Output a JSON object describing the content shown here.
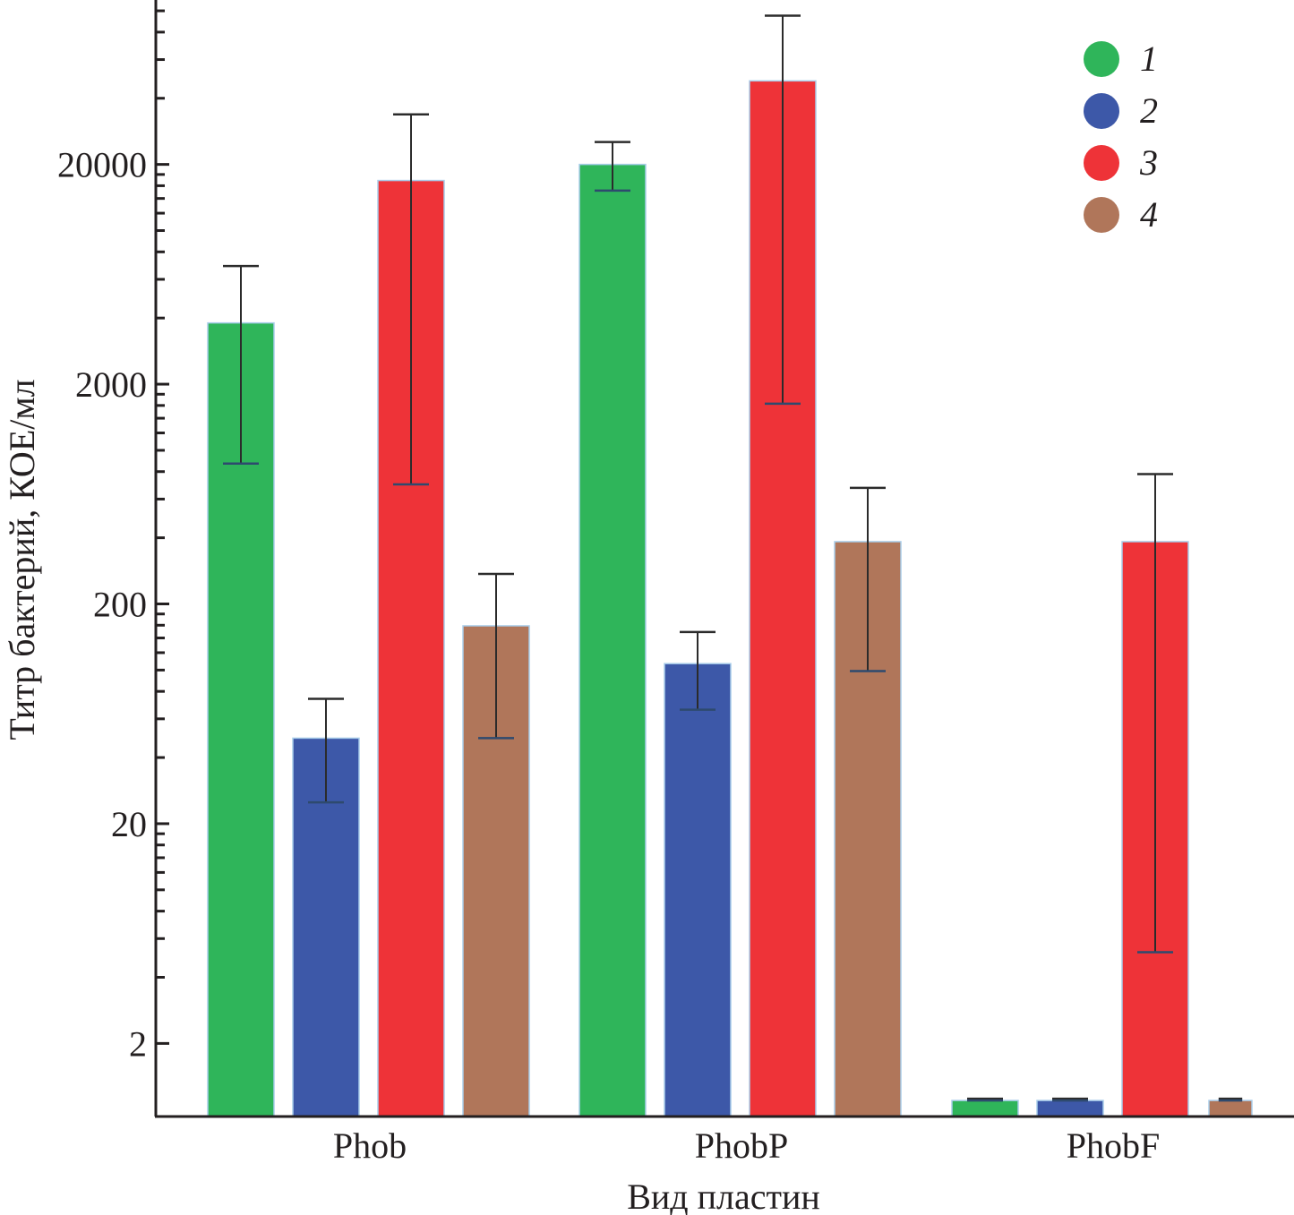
{
  "chart_data": {
    "type": "bar",
    "title": "",
    "xlabel": "Вид пластин",
    "ylabel": "Титр бактерий, КОЕ/мл",
    "yscale": "log",
    "ylim": [
      0.93,
      112000
    ],
    "yticks": [
      2,
      20,
      200,
      2000,
      20000
    ],
    "ytick_labels": [
      "2",
      "20",
      "200",
      "2000",
      "20000"
    ],
    "grid": false,
    "legend_position": "top-right",
    "categories": [
      "Phob",
      "PhobP",
      "PhobF"
    ],
    "series": [
      {
        "name": "1",
        "color": "#2fb55a",
        "values": [
          3800,
          20000,
          1.1
        ],
        "err_low": [
          870,
          15200,
          1.1
        ],
        "err_high": [
          6900,
          25300,
          1.12
        ]
      },
      {
        "name": "2",
        "color": "#3d58a8",
        "values": [
          49,
          107,
          1.1
        ],
        "err_low": [
          25,
          66,
          1.1
        ],
        "err_high": [
          74,
          149,
          1.12
        ]
      },
      {
        "name": "3",
        "color": "#ee3338",
        "values": [
          16900,
          48000,
          384
        ],
        "err_low": [
          700,
          1630,
          5.2
        ],
        "err_high": [
          33800,
          95000,
          780
        ]
      },
      {
        "name": "4",
        "color": "#b0765a",
        "values": [
          159,
          384,
          1.1
        ],
        "err_low": [
          49,
          99,
          1.1
        ],
        "err_high": [
          274,
          675,
          1.12
        ]
      }
    ]
  }
}
